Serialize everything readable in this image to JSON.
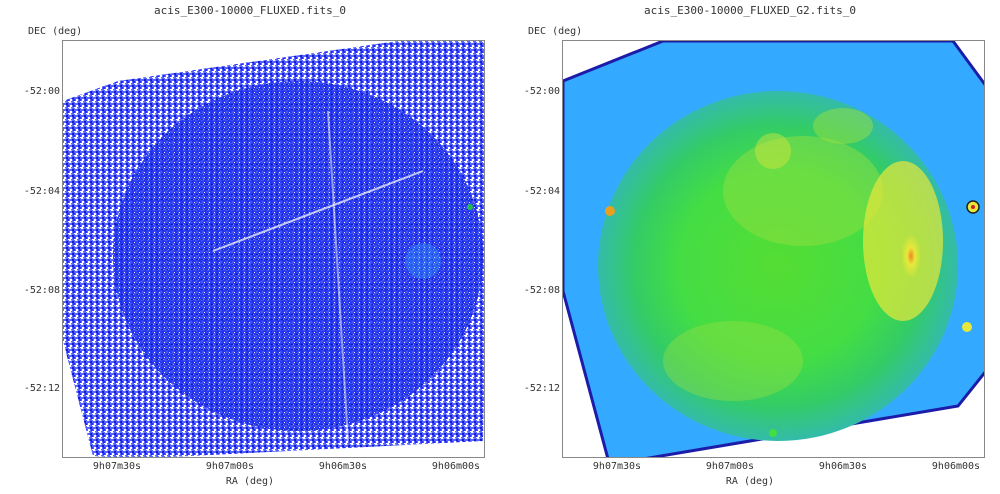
{
  "left": {
    "title": "acis_E300-10000_FLUXED.fits_0",
    "ylabel": "DEC (deg)",
    "xlabel": "RA (deg)"
  },
  "right": {
    "title": "acis_E300-10000_FLUXED_G2.fits_0",
    "ylabel": "DEC (deg)",
    "xlabel": "RA (deg)"
  },
  "yticks": [
    "-52:00",
    "-52:04",
    "-52:08",
    "-52:12"
  ],
  "xticks": [
    "9h07m30s",
    "9h07m00s",
    "9h06m30s",
    "9h06m00s"
  ],
  "colors": {
    "raw_blue": "#1a2be0",
    "smooth_bg": "#33aaff",
    "smooth_green": "#44dd44",
    "smooth_yellow": "#e8e83a"
  }
}
